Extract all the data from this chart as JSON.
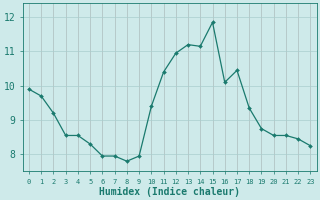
{
  "x": [
    0,
    1,
    2,
    3,
    4,
    5,
    6,
    7,
    8,
    9,
    10,
    11,
    12,
    13,
    14,
    15,
    16,
    17,
    18,
    19,
    20,
    21,
    22,
    23
  ],
  "y": [
    9.9,
    9.7,
    9.2,
    8.55,
    8.55,
    8.3,
    7.95,
    7.95,
    7.8,
    7.95,
    9.4,
    10.4,
    10.95,
    11.2,
    11.15,
    11.85,
    10.1,
    10.45,
    9.35,
    8.75,
    8.55,
    8.55,
    8.45,
    8.25
  ],
  "line_color": "#1a7a6e",
  "marker": "D",
  "marker_size": 2.0,
  "bg_color": "#ceeaea",
  "grid_color": "#aacece",
  "xlabel": "Humidex (Indice chaleur)",
  "xlabel_fontsize": 7,
  "tick_color": "#1a7a6e",
  "label_color": "#1a7a6e",
  "ylim": [
    7.5,
    12.4
  ],
  "yticks": [
    8,
    9,
    10,
    11,
    12
  ],
  "ytick_fontsize": 7,
  "xtick_fontsize": 5,
  "xticks": [
    0,
    1,
    2,
    3,
    4,
    5,
    6,
    7,
    8,
    9,
    10,
    11,
    12,
    13,
    14,
    15,
    16,
    17,
    18,
    19,
    20,
    21,
    22,
    23
  ]
}
